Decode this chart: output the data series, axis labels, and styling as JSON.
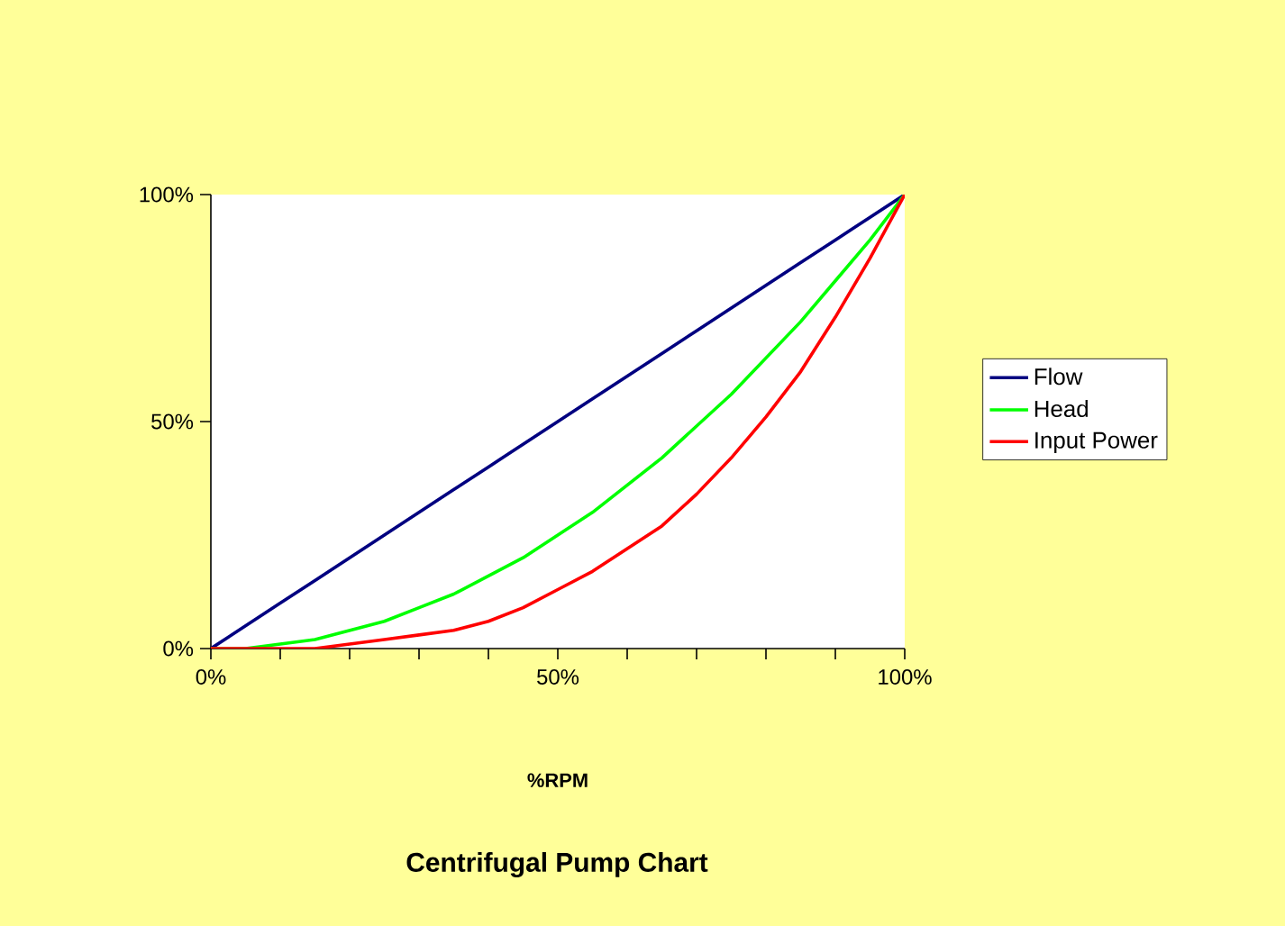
{
  "chart_data": {
    "type": "line",
    "title": "Centrifugal Pump Chart",
    "xlabel": "%RPM",
    "x": [
      0,
      5,
      10,
      15,
      20,
      25,
      30,
      35,
      40,
      45,
      50,
      55,
      60,
      65,
      70,
      75,
      80,
      85,
      90,
      95,
      100
    ],
    "series": [
      {
        "name": "Flow",
        "color": "#000080",
        "values": [
          0,
          5,
          10,
          15,
          20,
          25,
          30,
          35,
          40,
          45,
          50,
          55,
          60,
          65,
          70,
          75,
          80,
          85,
          90,
          95,
          100
        ]
      },
      {
        "name": "Head",
        "color": "#00ff00",
        "values": [
          0,
          0,
          1,
          2,
          4,
          6,
          9,
          12,
          16,
          20,
          25,
          30,
          36,
          42,
          49,
          56,
          64,
          72,
          81,
          90,
          100
        ]
      },
      {
        "name": "Input Power",
        "color": "#ff0000",
        "values": [
          0,
          0,
          0,
          0,
          1,
          2,
          3,
          4,
          6,
          9,
          13,
          17,
          22,
          27,
          34,
          42,
          51,
          61,
          73,
          86,
          100
        ]
      }
    ],
    "xlim": [
      0,
      100
    ],
    "ylim": [
      0,
      100
    ],
    "xticks": [
      {
        "value": 0,
        "label": "0%"
      },
      {
        "value": 10,
        "label": null
      },
      {
        "value": 20,
        "label": null
      },
      {
        "value": 30,
        "label": null
      },
      {
        "value": 40,
        "label": null
      },
      {
        "value": 50,
        "label": "50%"
      },
      {
        "value": 60,
        "label": null
      },
      {
        "value": 70,
        "label": null
      },
      {
        "value": 80,
        "label": null
      },
      {
        "value": 90,
        "label": null
      },
      {
        "value": 100,
        "label": "100%"
      }
    ],
    "yticks": [
      {
        "value": 0,
        "label": "0%"
      },
      {
        "value": 50,
        "label": "50%"
      },
      {
        "value": 100,
        "label": "100%"
      }
    ],
    "legend": "right",
    "grid": false,
    "marker": "none",
    "line_style": "solid"
  }
}
